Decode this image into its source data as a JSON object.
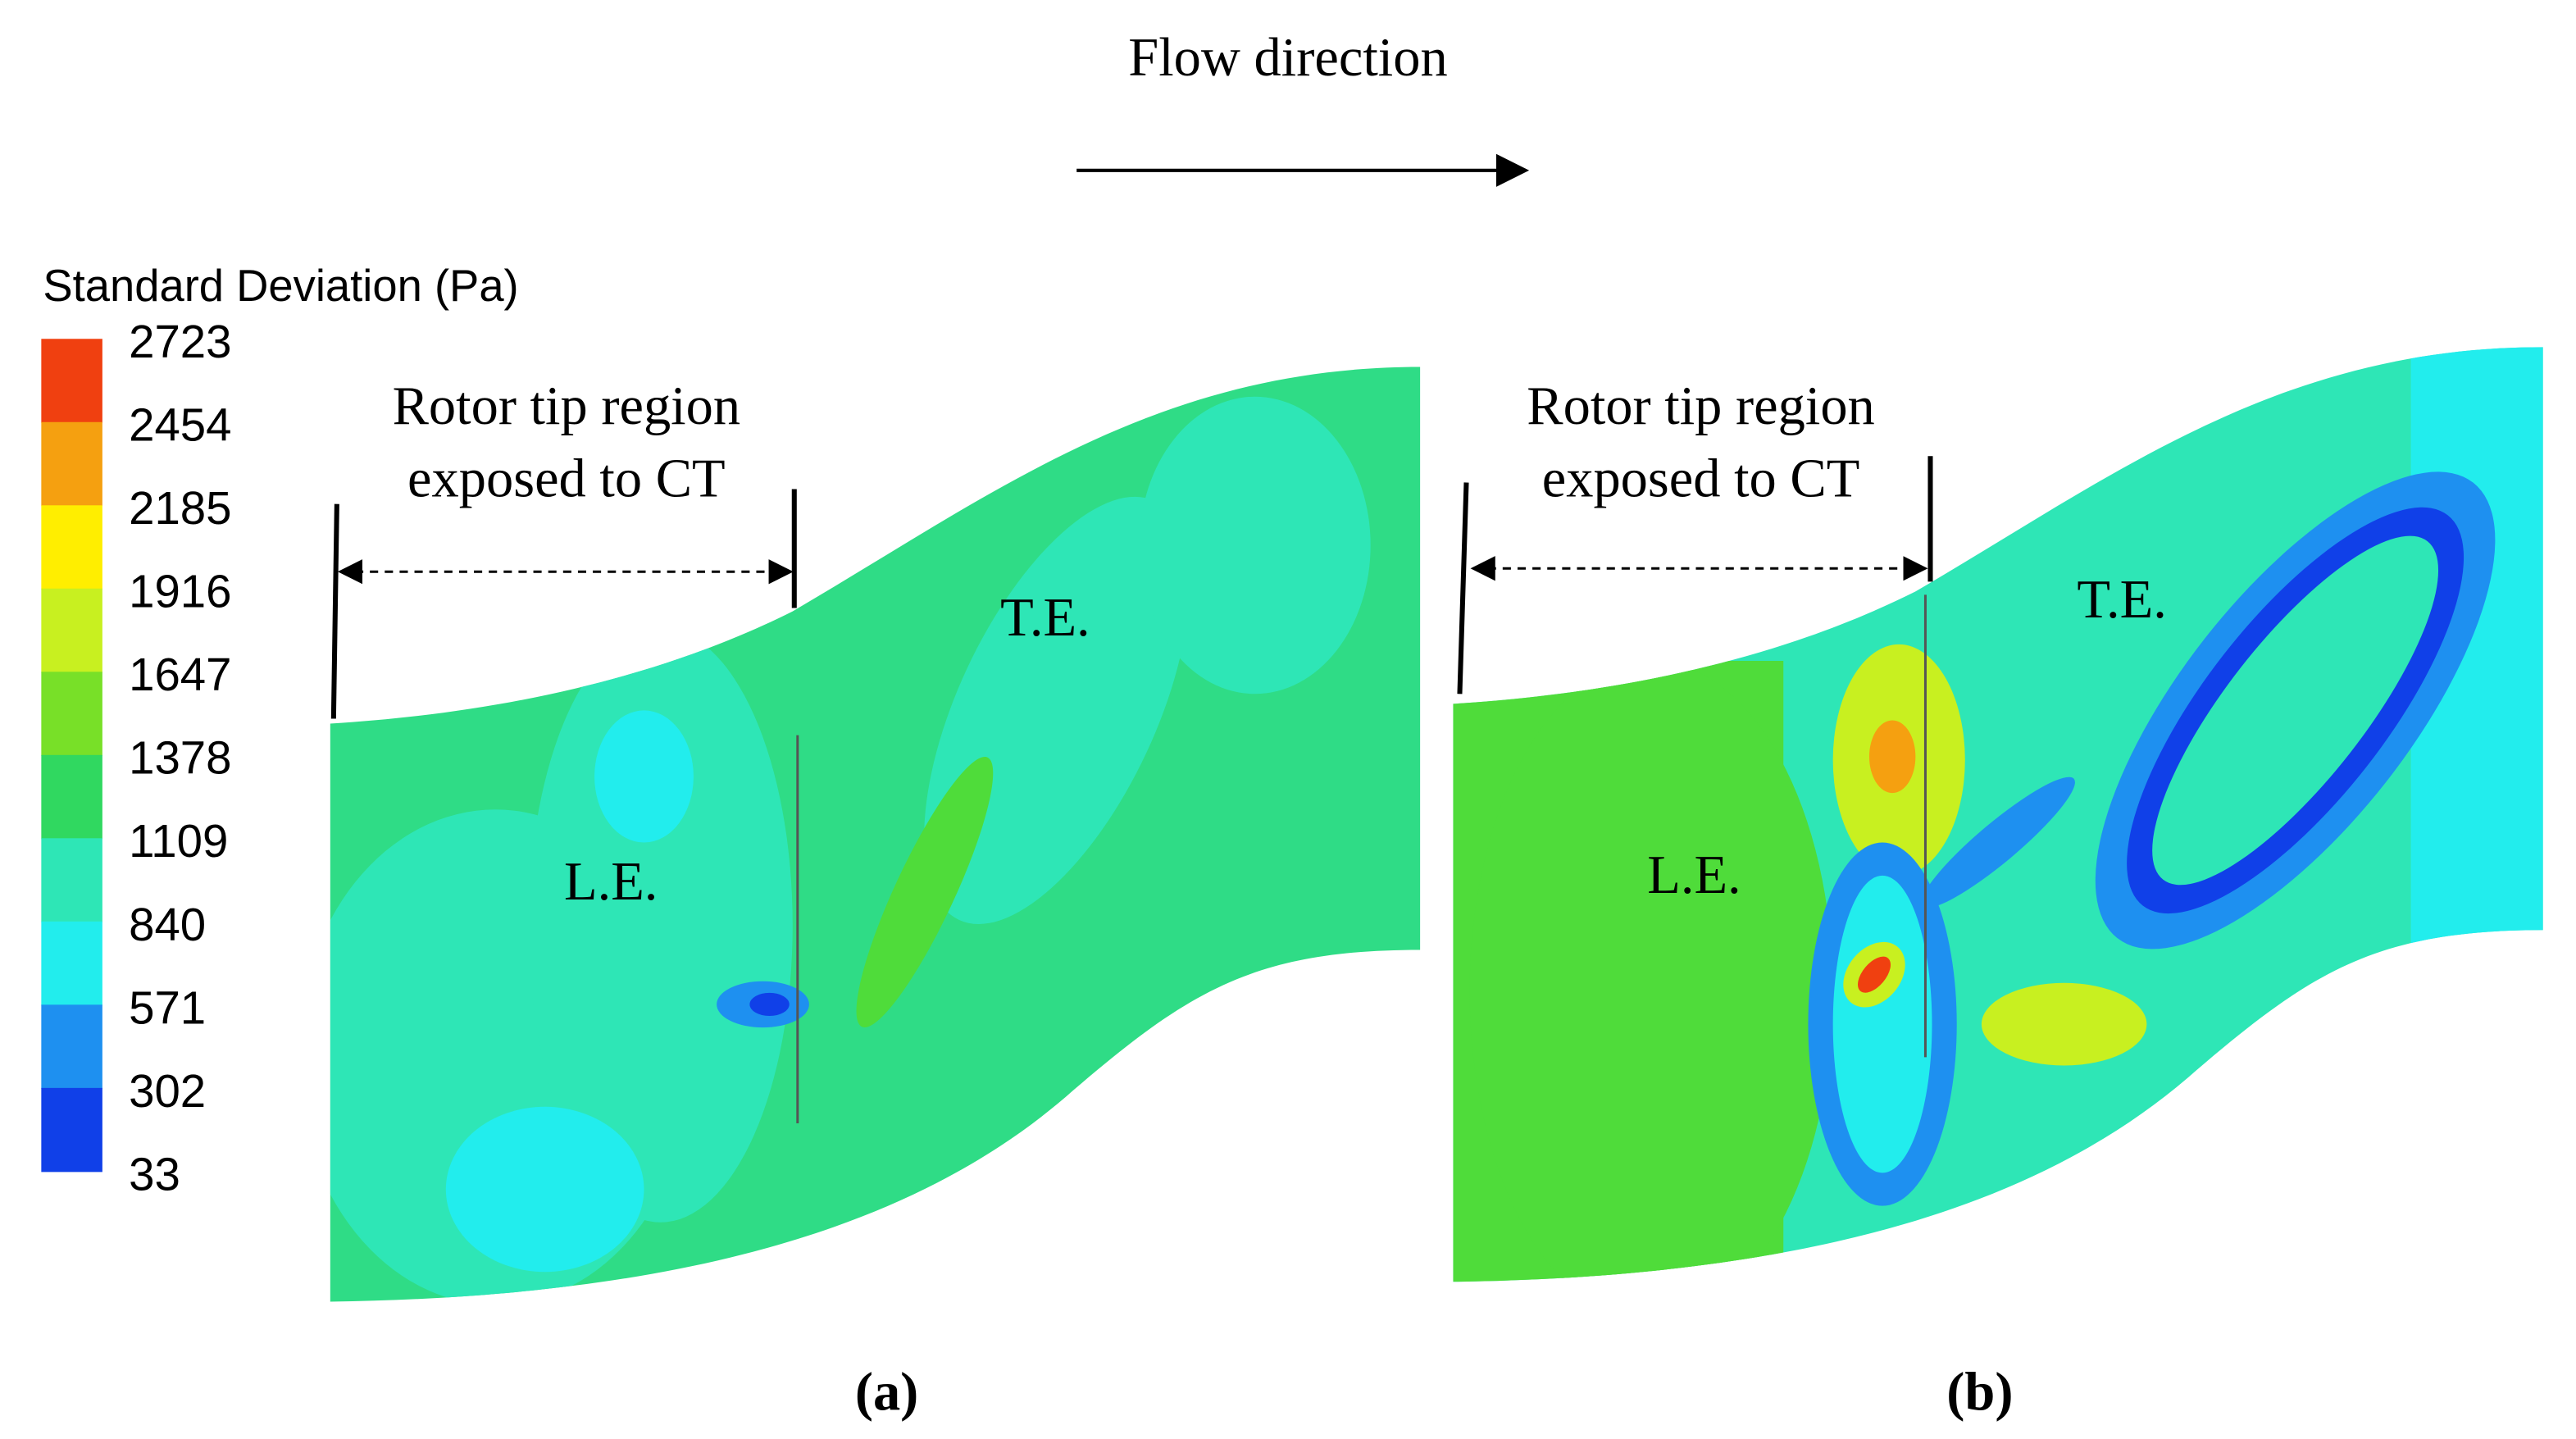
{
  "header": {
    "title": "Flow direction"
  },
  "legend": {
    "title": "Standard Deviation (Pa)",
    "levels": [
      "2723",
      "2454",
      "2185",
      "1916",
      "1647",
      "1378",
      "1109",
      "840",
      "571",
      "302",
      "33"
    ]
  },
  "panels": [
    {
      "region_label": [
        "Rotor tip region",
        "exposed to CT"
      ],
      "leading_edge": "L.E.",
      "trailing_edge": "T.E.",
      "caption": "(a)"
    },
    {
      "region_label": [
        "Rotor tip region",
        "exposed to CT"
      ],
      "leading_edge": "L.E.",
      "trailing_edge": "T.E.",
      "caption": "(b)"
    }
  ]
}
